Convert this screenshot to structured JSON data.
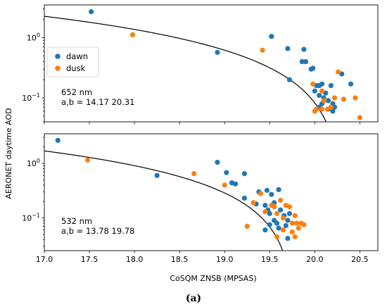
{
  "caption": "(a)",
  "colors": {
    "dawn": "#1f77b4",
    "dusk": "#ff7f0e",
    "fit": "#000000"
  },
  "chart_data": [
    {
      "type": "scatter",
      "panel": "top",
      "ylabel": "AERONET daytime AOD",
      "xlabel": "",
      "xlim": [
        17.0,
        20.7
      ],
      "ylim": [
        0.04,
        3.5
      ],
      "yscale": "log",
      "legend": {
        "placement": "left",
        "entries": [
          "dawn",
          "dusk"
        ]
      },
      "annotation": [
        "652 nm",
        "a,b = 14.17 20.31"
      ],
      "fit": {
        "a": 14.17,
        "b": 20.31
      },
      "series": [
        {
          "name": "dawn",
          "points": [
            [
              17.52,
              2.7
            ],
            [
              18.92,
              0.57
            ],
            [
              19.52,
              1.05
            ],
            [
              19.7,
              0.66
            ],
            [
              19.88,
              0.64
            ],
            [
              19.72,
              0.2
            ],
            [
              19.86,
              0.4
            ],
            [
              19.9,
              0.4
            ],
            [
              19.96,
              0.3
            ],
            [
              19.98,
              0.31
            ],
            [
              20.05,
              0.16
            ],
            [
              20.08,
              0.17
            ],
            [
              20.02,
              0.16
            ],
            [
              20.0,
              0.13
            ],
            [
              20.05,
              0.11
            ],
            [
              20.1,
              0.1
            ],
            [
              20.12,
              0.12
            ],
            [
              20.15,
              0.09
            ],
            [
              20.2,
              0.08
            ],
            [
              20.08,
              0.08
            ],
            [
              20.15,
              0.065
            ],
            [
              20.22,
              0.07
            ],
            [
              20.18,
              0.16
            ],
            [
              20.3,
              0.25
            ],
            [
              20.4,
              0.17
            ],
            [
              20.05,
              0.07
            ],
            [
              20.2,
              0.06
            ]
          ]
        },
        {
          "name": "dusk",
          "points": [
            [
              17.98,
              1.12
            ],
            [
              19.42,
              0.62
            ],
            [
              19.98,
              0.17
            ],
            [
              20.08,
              0.13
            ],
            [
              20.1,
              0.09
            ],
            [
              20.02,
              0.065
            ],
            [
              20.08,
              0.065
            ],
            [
              20.14,
              0.065
            ],
            [
              20.18,
              0.07
            ],
            [
              20.22,
              0.1
            ],
            [
              20.26,
              0.27
            ],
            [
              20.32,
              0.095
            ],
            [
              20.45,
              0.1
            ],
            [
              20.5,
              0.047
            ],
            [
              20.0,
              0.06
            ]
          ]
        }
      ]
    },
    {
      "type": "scatter",
      "panel": "bottom",
      "xlabel": "CoSQM ZNSB (MPSAS)",
      "ylabel": "AERONET daytime AOD",
      "xlim": [
        17.0,
        20.7
      ],
      "ylim": [
        0.025,
        3.5
      ],
      "yscale": "log",
      "xticks": [
        "17.0",
        "17.5",
        "18.0",
        "18.5",
        "19.0",
        "19.5",
        "20.0",
        "20.5"
      ],
      "annotation": [
        "532 nm",
        "a,b = 13.78 19.78"
      ],
      "fit": {
        "a": 13.78,
        "b": 19.78
      },
      "series": [
        {
          "name": "dawn",
          "points": [
            [
              17.15,
              2.65
            ],
            [
              18.25,
              0.6
            ],
            [
              18.92,
              1.05
            ],
            [
              19.02,
              0.68
            ],
            [
              19.08,
              0.44
            ],
            [
              19.12,
              0.42
            ],
            [
              19.22,
              0.65
            ],
            [
              19.22,
              0.23
            ],
            [
              19.35,
              0.18
            ],
            [
              19.38,
              0.3
            ],
            [
              19.45,
              0.17
            ],
            [
              19.47,
              0.32
            ],
            [
              19.52,
              0.27
            ],
            [
              19.55,
              0.19
            ],
            [
              19.6,
              0.33
            ],
            [
              19.48,
              0.14
            ],
            [
              19.5,
              0.12
            ],
            [
              19.55,
              0.09
            ],
            [
              19.58,
              0.08
            ],
            [
              19.62,
              0.14
            ],
            [
              19.66,
              0.11
            ],
            [
              19.7,
              0.09
            ],
            [
              19.72,
              0.12
            ],
            [
              19.5,
              0.075
            ],
            [
              19.6,
              0.065
            ],
            [
              19.7,
              0.042
            ],
            [
              19.45,
              0.06
            ],
            [
              19.68,
              0.072
            ]
          ]
        },
        {
          "name": "dusk",
          "points": [
            [
              17.48,
              1.15
            ],
            [
              18.66,
              0.65
            ],
            [
              19.0,
              0.4
            ],
            [
              19.25,
              0.07
            ],
            [
              19.32,
              0.19
            ],
            [
              19.4,
              0.28
            ],
            [
              19.45,
              0.13
            ],
            [
              19.52,
              0.17
            ],
            [
              19.55,
              0.16
            ],
            [
              19.58,
              0.12
            ],
            [
              19.62,
              0.21
            ],
            [
              19.65,
              0.1
            ],
            [
              19.68,
              0.17
            ],
            [
              19.72,
              0.16
            ],
            [
              19.75,
              0.08
            ],
            [
              19.78,
              0.11
            ],
            [
              19.8,
              0.08
            ],
            [
              19.85,
              0.08
            ],
            [
              19.82,
              0.065
            ],
            [
              19.75,
              0.055
            ],
            [
              19.65,
              0.06
            ],
            [
              19.58,
              0.045
            ],
            [
              19.78,
              0.045
            ],
            [
              19.88,
              0.075
            ]
          ]
        }
      ]
    }
  ]
}
